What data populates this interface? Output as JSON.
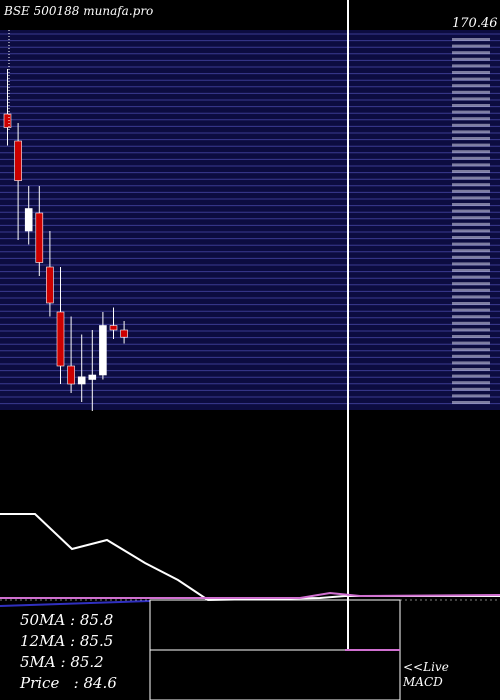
{
  "header": {
    "title": "BSE 500188 munafa.pro",
    "price_tag": "170.46"
  },
  "stats": {
    "ma50": "50MA : 85.8",
    "ma12": "12MA : 85.5",
    "ma5": "5MA : 85.2",
    "price": "Price   : 84.6"
  },
  "macd": {
    "line1": "<<Live",
    "line2": "MACD"
  },
  "colors": {
    "up": "#ffffff",
    "down": "#cc0000",
    "panel": "#0c0c40",
    "grid": "#3a3a90",
    "ma_line": "#ffffff",
    "macd_line": "#d070d0",
    "signal_line": "#3030c0"
  },
  "chart_data": {
    "type": "candlestick",
    "candles": [
      {
        "o": 92.0,
        "h": 97.0,
        "l": 88.5,
        "c": 90.5
      },
      {
        "o": 89.0,
        "h": 91.0,
        "l": 78.0,
        "c": 84.6
      },
      {
        "o": 79.0,
        "h": 84.0,
        "l": 77.5,
        "c": 81.5
      },
      {
        "o": 81.0,
        "h": 84.0,
        "l": 74.0,
        "c": 75.5
      },
      {
        "o": 75.0,
        "h": 79.0,
        "l": 69.5,
        "c": 71.0
      },
      {
        "o": 70.0,
        "h": 75.0,
        "l": 62.0,
        "c": 64.0
      },
      {
        "o": 64.0,
        "h": 69.5,
        "l": 61.0,
        "c": 62.0
      },
      {
        "o": 62.0,
        "h": 67.5,
        "l": 60.0,
        "c": 62.8
      },
      {
        "o": 62.5,
        "h": 68.0,
        "l": 59.0,
        "c": 63.0
      },
      {
        "o": 63.0,
        "h": 70.0,
        "l": 62.5,
        "c": 68.5
      },
      {
        "o": 68.5,
        "h": 70.5,
        "l": 67.0,
        "c": 68.0
      },
      {
        "o": 68.0,
        "h": 69.0,
        "l": 66.5,
        "c": 67.2
      }
    ],
    "ma_line": [
      85.8,
      85.5,
      85.0,
      84.6,
      84.0,
      83.0,
      82.5,
      82.0,
      81.5,
      81.0,
      80.6,
      80.5
    ]
  }
}
